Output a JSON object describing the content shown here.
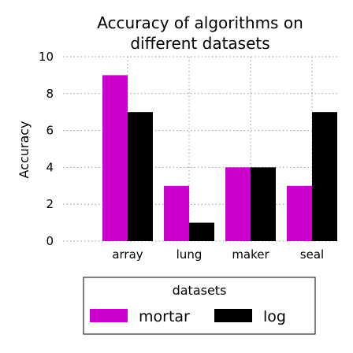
{
  "chart_data": {
    "type": "bar",
    "title_lines": [
      "Accuracy of algorithms on",
      "different datasets"
    ],
    "xlabel": "",
    "ylabel": "Accuracy",
    "categories": [
      "array",
      "lung",
      "maker",
      "seal"
    ],
    "series": [
      {
        "name": "mortar",
        "color": "#cc00cc",
        "values": [
          9,
          3,
          4,
          3
        ]
      },
      {
        "name": "log",
        "color": "#000000",
        "values": [
          7,
          1,
          4,
          7
        ]
      }
    ],
    "ylim": [
      0,
      10
    ],
    "yticks": [
      "0",
      "2",
      "4",
      "6",
      "8",
      "10"
    ],
    "grid": true,
    "legend": {
      "title": "datasets",
      "placement": "bottom"
    }
  }
}
